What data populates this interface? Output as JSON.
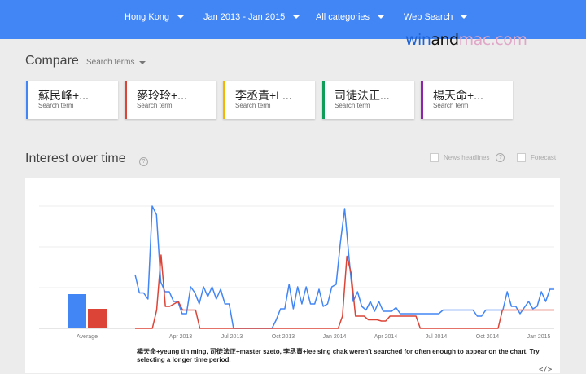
{
  "filters": {
    "region": "Hong Kong",
    "date_range": "Jan 2013 - Jan 2015",
    "category": "All categories",
    "search_type": "Web Search"
  },
  "watermark": {
    "part1": "win",
    "part2": "and",
    "part3": "mac.com"
  },
  "compare": {
    "title": "Compare",
    "dropdown": "Search terms"
  },
  "terms": [
    {
      "name": "蘇民峰+...",
      "sub": "Search term",
      "color": "#4285f4"
    },
    {
      "name": "麥玲玲+...",
      "sub": "Search term",
      "color": "#db4437"
    },
    {
      "name": "李丞責+L...",
      "sub": "Search term",
      "color": "#f4b400"
    },
    {
      "name": "司徒法正...",
      "sub": "Search term",
      "color": "#0f9d58"
    },
    {
      "name": "楊天命+...",
      "sub": "Search term",
      "color": "#8e24aa"
    }
  ],
  "interest": {
    "title": "Interest over time",
    "help": "?",
    "news_headlines": "News headlines",
    "forecast": "Forecast",
    "note": "楊天命+yeung tin ming, 司徒法正+master szeto, 李丞責+lee sing chak weren't searched for often enough to appear on the chart. Try selecting a longer time period.",
    "embed": "</>"
  },
  "chart_data": {
    "type": "line",
    "average": {
      "label": "Average",
      "values": [
        {
          "series": "blue",
          "value": 28
        },
        {
          "series": "red",
          "value": 16
        }
      ]
    },
    "x_ticks": [
      "Apr 2013",
      "Jul 2013",
      "Oct 2013",
      "Jan 2014",
      "Apr 2014",
      "Jul 2014",
      "Oct 2014",
      "Jan 2015"
    ],
    "ylim": [
      0,
      100
    ],
    "series": [
      {
        "color": "#4285f4",
        "values": [
          44,
          29,
          29,
          24,
          100,
          93,
          38,
          30,
          30,
          22,
          22,
          12,
          12,
          34,
          29,
          20,
          34,
          26,
          34,
          24,
          32,
          20,
          20,
          0,
          0,
          0,
          0,
          0,
          0,
          0,
          0,
          0,
          0,
          7,
          16,
          16,
          36,
          16,
          34,
          20,
          34,
          20,
          20,
          32,
          18,
          20,
          34,
          36,
          70,
          98,
          58,
          22,
          30,
          18,
          15,
          22,
          14,
          22,
          14,
          14,
          14,
          17,
          12,
          12,
          12,
          12,
          12,
          12,
          12,
          12,
          12,
          12,
          15,
          15,
          15,
          15,
          15,
          15,
          15,
          15,
          10,
          10,
          15,
          15,
          15,
          15,
          15,
          30,
          18,
          18,
          12,
          17,
          22,
          16,
          18,
          30,
          22,
          32,
          32
        ]
      },
      {
        "color": "#db4437",
        "values": [
          0,
          0,
          0,
          0,
          0,
          15,
          60,
          18,
          18,
          20,
          22,
          15,
          15,
          15,
          15,
          0,
          0,
          0,
          0,
          0,
          0,
          0,
          0,
          0,
          0,
          0,
          0,
          0,
          0,
          0,
          0,
          0,
          0,
          0,
          0,
          0,
          0,
          0,
          0,
          0,
          0,
          0,
          0,
          0,
          0,
          0,
          0,
          0,
          10,
          59,
          45,
          10,
          10,
          10,
          7,
          7,
          7,
          6,
          6,
          10,
          10,
          10,
          10,
          10,
          10,
          10,
          0,
          0,
          0,
          0,
          0,
          0,
          0,
          0,
          0,
          0,
          0,
          0,
          0,
          0,
          0,
          0,
          0,
          0,
          0,
          15,
          15,
          15,
          15,
          15,
          15,
          15,
          15,
          15,
          15,
          15,
          15,
          15
        ]
      }
    ]
  }
}
